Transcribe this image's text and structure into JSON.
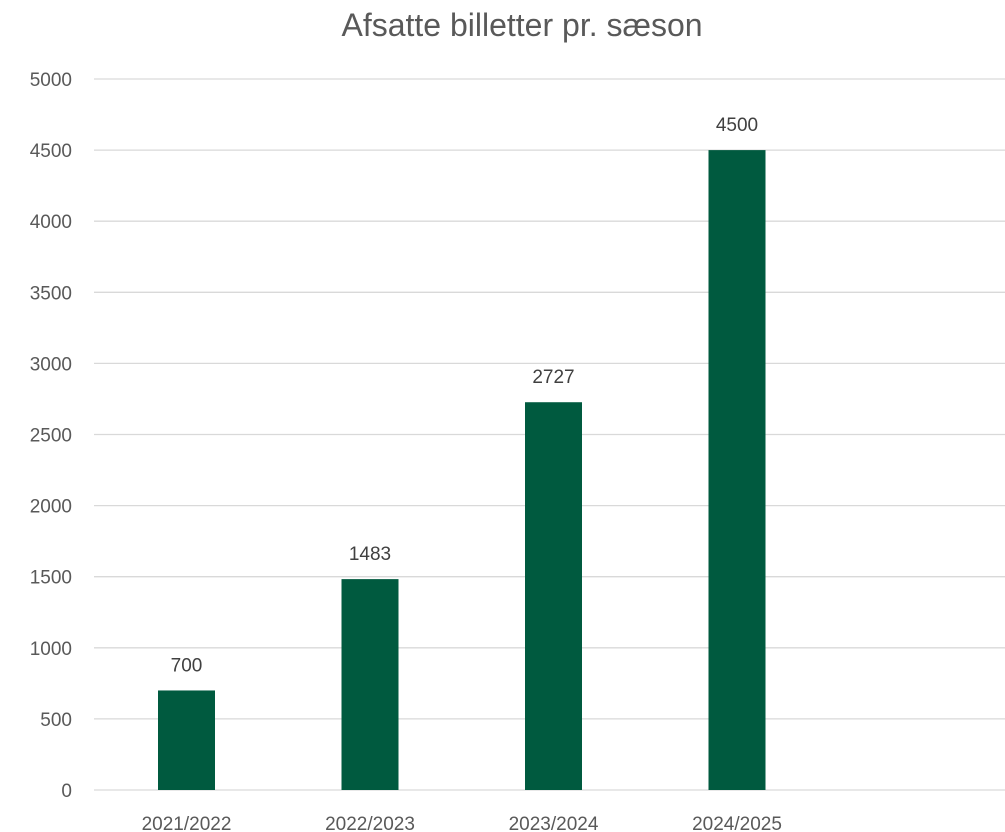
{
  "chart_data": {
    "type": "bar",
    "title": "Afsatte billetter pr. sæson",
    "xlabel": "",
    "ylabel": "",
    "categories": [
      "2021/2022",
      "2022/2023",
      "2023/2024",
      "2024/2025"
    ],
    "values": [
      700,
      1483,
      2727,
      4500
    ],
    "data_labels": [
      "700",
      "1483",
      "2727",
      "4500"
    ],
    "y_ticks": [
      0,
      500,
      1000,
      1500,
      2000,
      2500,
      3000,
      3500,
      4000,
      4500,
      5000
    ],
    "ylim": [
      0,
      5000
    ],
    "grid": true,
    "legend": "none",
    "bar_color": "#005A3F"
  }
}
